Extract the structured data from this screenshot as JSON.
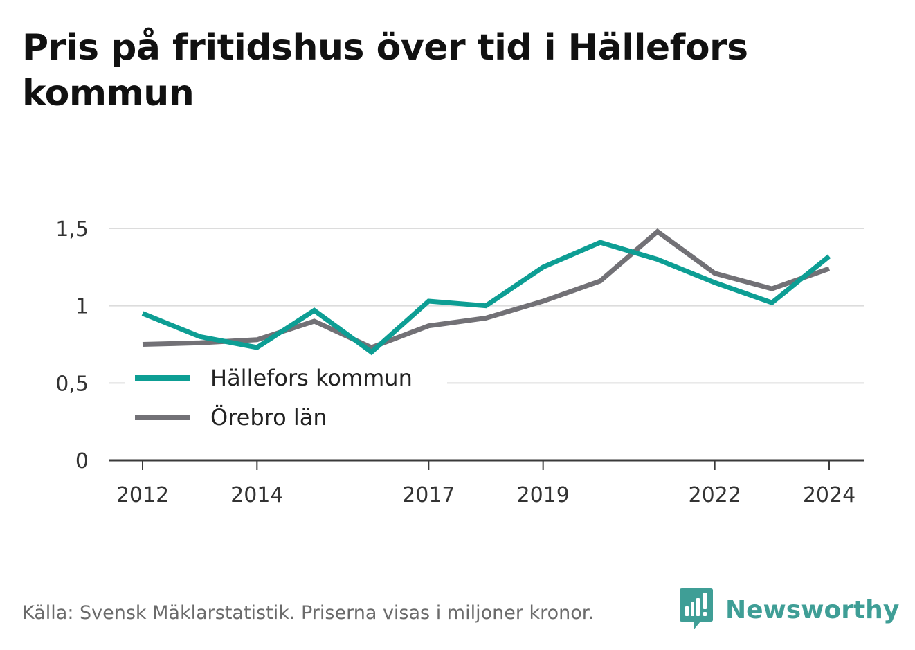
{
  "title": "Pris på fritidshus över tid i Hällefors kommun",
  "source": "Källa: Svensk Mäklarstatistik. Priserna visas i miljoner kronor.",
  "brand": {
    "name": "Newsworthy",
    "icon": "newsworthy-logo-icon",
    "color": "#3f9e96"
  },
  "chart_data": {
    "type": "line",
    "x": [
      2012,
      2013,
      2014,
      2015,
      2016,
      2017,
      2018,
      2019,
      2020,
      2021,
      2022,
      2023,
      2024
    ],
    "x_tick_labels": [
      "2012",
      "2014",
      "2017",
      "2019",
      "2022",
      "2024"
    ],
    "y_tick_labels": [
      "1,5",
      "1",
      "0,5",
      "0"
    ],
    "y_ticks": [
      1.5,
      1,
      0.5,
      0
    ],
    "ylim": [
      0,
      1.5
    ],
    "grid": true,
    "legend_position": "bottom-left",
    "series": [
      {
        "name": "Hällefors kommun",
        "color": "#0d9e94",
        "values": [
          0.95,
          0.8,
          0.73,
          0.97,
          0.7,
          1.03,
          1.0,
          1.25,
          1.41,
          1.3,
          1.15,
          1.02,
          1.32
        ]
      },
      {
        "name": "Örebro län",
        "color": "#727176",
        "values": [
          0.75,
          0.76,
          0.78,
          0.9,
          0.73,
          0.87,
          0.92,
          1.03,
          1.16,
          1.48,
          1.21,
          1.11,
          1.24
        ]
      }
    ]
  }
}
